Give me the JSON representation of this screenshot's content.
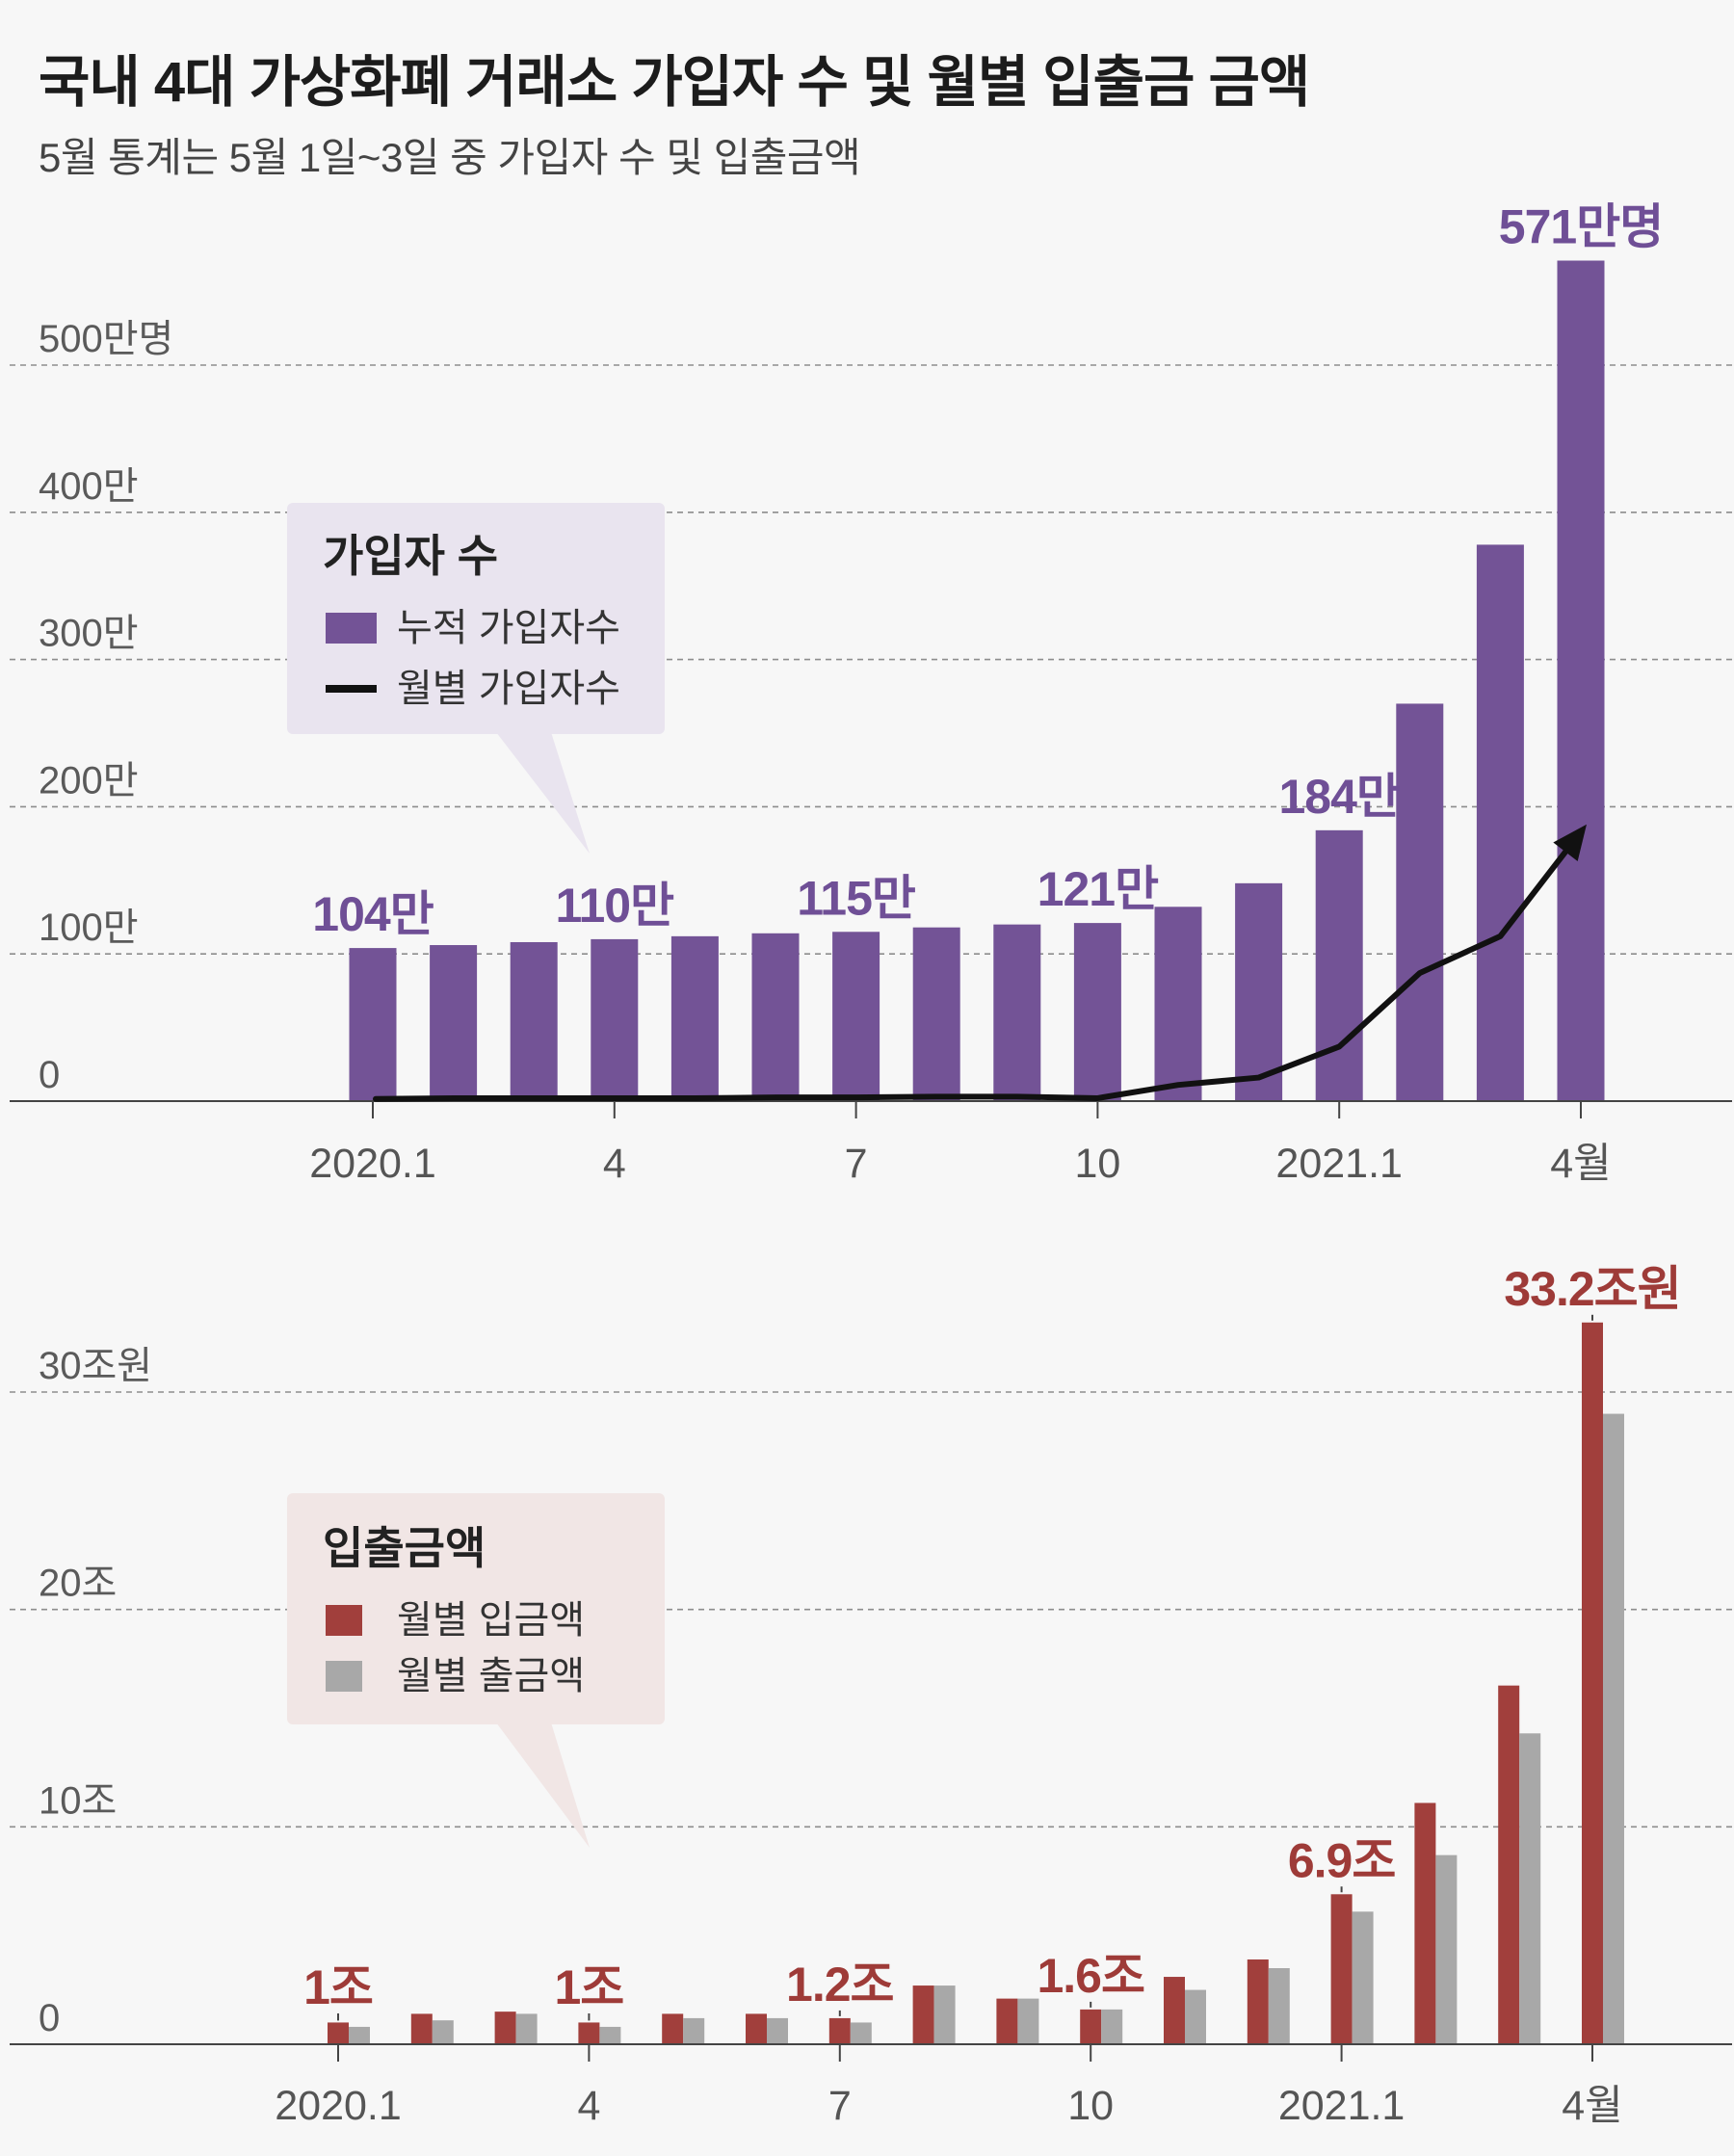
{
  "title": "국내 4대 가상화폐 거래소 가입자 수 및 월별 입출금 금액",
  "subtitle": "5월 통계는 5월 1일~3일 중 가입자 수 및 입출금액",
  "colors": {
    "cumulative": "#735396",
    "monthly_line": "#111111",
    "deposit": "#a13f3c",
    "withdrawal": "#a8a8a8",
    "legend1_bg": "#e9e4ef",
    "legend2_bg": "#f1e6e5"
  },
  "chart_data": [
    {
      "type": "bar",
      "title": "",
      "categories": [
        "2020.1",
        "2020.2",
        "2020.3",
        "2020.4",
        "2020.5",
        "2020.6",
        "2020.7",
        "2020.8",
        "2020.9",
        "2020.10",
        "2020.11",
        "2020.12",
        "2021.1",
        "2021.2",
        "2021.3",
        "2021.4"
      ],
      "x_tick_labels": [
        {
          "index": 0,
          "label": "2020.1"
        },
        {
          "index": 3,
          "label": "4"
        },
        {
          "index": 6,
          "label": "7"
        },
        {
          "index": 9,
          "label": "10"
        },
        {
          "index": 12,
          "label": "2021.1"
        },
        {
          "index": 15,
          "label": "4월"
        }
      ],
      "ylim": [
        0,
        600
      ],
      "y_ticks": [
        {
          "value": 0,
          "label": "0"
        },
        {
          "value": 100,
          "label": "100만"
        },
        {
          "value": 200,
          "label": "200만"
        },
        {
          "value": 300,
          "label": "300만"
        },
        {
          "value": 400,
          "label": "400만"
        },
        {
          "value": 500,
          "label": "500만명"
        }
      ],
      "grid": true,
      "legend": {
        "title": "가입자 수",
        "placement": "top-left",
        "items": [
          {
            "label": "누적 가입자수",
            "kind": "bar"
          },
          {
            "label": "월별 가입자수",
            "kind": "line"
          }
        ]
      },
      "series": [
        {
          "name": "누적 가입자수",
          "kind": "bar",
          "values": [
            104,
            106,
            108,
            110,
            112,
            114,
            115,
            118,
            120,
            121,
            132,
            148,
            184,
            270,
            378,
            571
          ]
        },
        {
          "name": "월별 가입자수",
          "kind": "line",
          "values": [
            1.5,
            2,
            2,
            2,
            2,
            2.5,
            2.5,
            3,
            3,
            2,
            11,
            16,
            37,
            87,
            112,
            188
          ]
        }
      ],
      "data_labels": [
        {
          "index": 0,
          "text": "104만"
        },
        {
          "index": 3,
          "text": "110만"
        },
        {
          "index": 6,
          "text": "115만"
        },
        {
          "index": 9,
          "text": "121만"
        },
        {
          "index": 12,
          "text": "184만"
        },
        {
          "index": 15,
          "text": "571만명"
        }
      ]
    },
    {
      "type": "bar",
      "title": "",
      "categories": [
        "2020.1",
        "2020.2",
        "2020.3",
        "2020.4",
        "2020.5",
        "2020.6",
        "2020.7",
        "2020.8",
        "2020.9",
        "2020.10",
        "2020.11",
        "2020.12",
        "2021.1",
        "2021.2",
        "2021.3",
        "2021.4"
      ],
      "x_tick_labels": [
        {
          "index": 0,
          "label": "2020.1"
        },
        {
          "index": 3,
          "label": "4"
        },
        {
          "index": 6,
          "label": "7"
        },
        {
          "index": 9,
          "label": "10"
        },
        {
          "index": 12,
          "label": "2021.1"
        },
        {
          "index": 15,
          "label": "4월"
        }
      ],
      "ylim": [
        0,
        35
      ],
      "y_ticks": [
        {
          "value": 0,
          "label": "0"
        },
        {
          "value": 10,
          "label": "10조"
        },
        {
          "value": 20,
          "label": "20조"
        },
        {
          "value": 30,
          "label": "30조원"
        }
      ],
      "grid": true,
      "legend": {
        "title": "입출금액",
        "placement": "top-left",
        "items": [
          {
            "label": "월별 입금액",
            "kind": "bar"
          },
          {
            "label": "월별 출금액",
            "kind": "bar"
          }
        ]
      },
      "series": [
        {
          "name": "월별 입금액",
          "values": [
            1.0,
            1.4,
            1.5,
            1.0,
            1.4,
            1.4,
            1.2,
            2.7,
            2.1,
            1.6,
            3.1,
            3.9,
            6.9,
            11.1,
            16.5,
            33.2
          ]
        },
        {
          "name": "월별 출금액",
          "values": [
            0.8,
            1.1,
            1.4,
            0.8,
            1.2,
            1.2,
            1.0,
            2.7,
            2.1,
            1.6,
            2.5,
            3.5,
            6.1,
            8.7,
            14.3,
            29.0
          ]
        }
      ],
      "data_labels": [
        {
          "index": 0,
          "text": "1조"
        },
        {
          "index": 3,
          "text": "1조"
        },
        {
          "index": 6,
          "text": "1.2조"
        },
        {
          "index": 9,
          "text": "1.6조"
        },
        {
          "index": 12,
          "text": "6.9조"
        },
        {
          "index": 15,
          "text": "33.2조원"
        }
      ]
    }
  ]
}
